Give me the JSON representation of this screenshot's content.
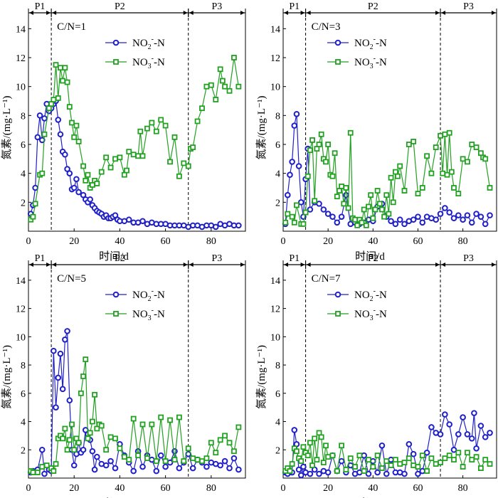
{
  "colors": {
    "no2": "#2020c8",
    "no3": "#22a022",
    "axis": "#000000"
  },
  "texts": {
    "time_label": "时间/d",
    "y_label": "氮素/(mg·L⁻¹)"
  },
  "chart_data": [
    {
      "type": "line",
      "annotation": "C/N=1",
      "phases": [
        "P1",
        "P2",
        "P3"
      ],
      "phase_bounds": [
        0,
        10,
        70,
        95
      ],
      "xlim": [
        0,
        95
      ],
      "ylim": [
        0,
        15
      ],
      "xticks": [
        0,
        20,
        40,
        60,
        80
      ],
      "yticks": [
        2,
        4,
        6,
        8,
        10,
        12,
        14
      ],
      "xlabel": "时间/d",
      "ylabel": "氮素/(mg·L⁻¹)",
      "series": [
        {
          "name": "NO2-",
          "marker": "circle",
          "x": [
            1,
            2,
            3,
            4,
            5,
            6,
            7,
            8,
            9,
            10,
            11,
            12,
            13,
            14,
            15,
            16,
            17,
            18,
            19,
            20,
            21,
            22,
            24,
            25,
            26,
            27,
            28,
            29,
            30,
            31,
            32,
            33,
            34,
            35,
            36,
            37,
            38,
            39,
            40,
            42,
            44,
            46,
            48,
            50,
            52,
            54,
            56,
            58,
            60,
            62,
            64,
            66,
            68,
            70,
            72,
            74,
            76,
            78,
            80,
            82,
            84,
            86,
            88,
            90,
            92
          ],
          "y": [
            1.2,
            1.8,
            3.0,
            6.5,
            8.0,
            6.3,
            7.8,
            8.8,
            8.3,
            8.5,
            8.8,
            9.0,
            7.7,
            6.7,
            5.5,
            5.3,
            4.3,
            4.0,
            2.9,
            3.0,
            3.6,
            2.7,
            2.5,
            2.2,
            2.0,
            2.2,
            1.8,
            1.6,
            1.4,
            1.3,
            1.2,
            1.0,
            1.1,
            0.9,
            0.9,
            1.0,
            1.1,
            0.8,
            0.7,
            0.7,
            0.8,
            0.6,
            0.6,
            0.7,
            0.5,
            0.6,
            0.5,
            0.5,
            0.5,
            0.4,
            0.4,
            0.4,
            0.4,
            0.3,
            0.4,
            0.4,
            0.3,
            0.4,
            0.4,
            0.3,
            0.5,
            0.4,
            0.5,
            0.4,
            0.4
          ]
        },
        {
          "name": "NO3-",
          "marker": "square",
          "x": [
            1,
            2,
            3,
            5,
            6,
            7,
            9,
            10,
            11,
            12,
            13,
            14,
            15,
            16,
            17,
            18,
            19,
            20,
            21,
            22,
            24,
            25,
            26,
            27,
            28,
            29,
            30,
            32,
            34,
            36,
            38,
            40,
            42,
            43,
            44,
            46,
            48,
            49,
            50,
            52,
            54,
            56,
            58,
            60,
            62,
            64,
            66,
            68,
            70,
            71,
            72,
            74,
            76,
            78,
            80,
            82,
            84,
            85,
            86,
            88,
            90,
            92
          ],
          "y": [
            0.8,
            1.0,
            1.9,
            3.9,
            4.0,
            6.7,
            8.5,
            8.8,
            9.1,
            11.5,
            9.2,
            11.3,
            10.4,
            11.3,
            10.3,
            8.6,
            7.5,
            6.5,
            7.3,
            6.2,
            4.5,
            3.5,
            3.9,
            3.0,
            3.2,
            3.5,
            3.3,
            4.1,
            5.1,
            4.4,
            5.0,
            5.1,
            3.9,
            4.2,
            5.5,
            5.3,
            5.2,
            6.9,
            5.2,
            7.1,
            7.5,
            6.9,
            7.7,
            7.3,
            4.8,
            6.5,
            3.8,
            4.7,
            4.5,
            5.7,
            5.8,
            7.6,
            8.5,
            10.0,
            10.1,
            9.1,
            11.2,
            10.4,
            10.0,
            9.7,
            12.0,
            10.0
          ]
        }
      ]
    },
    {
      "type": "line",
      "annotation": "C/N=3",
      "phases": [
        "P1",
        "P2",
        "P3"
      ],
      "phase_bounds": [
        0,
        10,
        70,
        95
      ],
      "xlim": [
        0,
        95
      ],
      "ylim": [
        0,
        15
      ],
      "xticks": [
        0,
        20,
        40,
        60,
        80
      ],
      "yticks": [
        2,
        4,
        6,
        8,
        10,
        12,
        14
      ],
      "xlabel": "时间/d",
      "ylabel": "氮素/(mg·L⁻¹)",
      "series": [
        {
          "name": "NO2-",
          "marker": "circle",
          "x": [
            1,
            2,
            3,
            4,
            5,
            6,
            7,
            8,
            9,
            10,
            11,
            12,
            14,
            16,
            18,
            20,
            22,
            24,
            26,
            28,
            30,
            32,
            34,
            36,
            38,
            40,
            42,
            44,
            46,
            48,
            50,
            52,
            54,
            56,
            58,
            60,
            62,
            64,
            66,
            68,
            70,
            72,
            74,
            76,
            78,
            80,
            82,
            84,
            86,
            88,
            90,
            92
          ],
          "y": [
            0.5,
            2.5,
            3.9,
            4.8,
            7.3,
            8.1,
            4.5,
            2.0,
            1.0,
            3.6,
            5.7,
            1.5,
            2.0,
            1.9,
            1.5,
            1.2,
            1.0,
            0.6,
            1.0,
            2.5,
            0.5,
            0.6,
            0.5,
            0.6,
            0.8,
            0.7,
            1.7,
            1.9,
            1.0,
            0.7,
            0.5,
            0.8,
            0.5,
            0.7,
            0.8,
            1.0,
            0.6,
            1.0,
            0.9,
            0.8,
            1.2,
            1.6,
            1.3,
            0.9,
            1.1,
            0.8,
            1.1,
            0.6,
            1.2,
            1.0,
            0.5,
            1.1
          ]
        },
        {
          "name": "NO3-",
          "marker": "square",
          "x": [
            1,
            2,
            4,
            5,
            6,
            8,
            9,
            10,
            11,
            12,
            13,
            14,
            15,
            16,
            17,
            18,
            19,
            20,
            21,
            22,
            23,
            24,
            25,
            26,
            27,
            28,
            29,
            30,
            31,
            32,
            33,
            34,
            35,
            36,
            37,
            38,
            39,
            40,
            41,
            42,
            43,
            44,
            45,
            46,
            47,
            48,
            49,
            50,
            51,
            52,
            54,
            56,
            58,
            60,
            62,
            64,
            66,
            68,
            70,
            71,
            72,
            73,
            74,
            75,
            76,
            78,
            80,
            82,
            84,
            86,
            88,
            89,
            90,
            92
          ],
          "y": [
            0.6,
            1.2,
            1.0,
            0.6,
            1.8,
            0.5,
            0.5,
            1.3,
            3.8,
            5.6,
            6.3,
            2.1,
            5.7,
            6.0,
            6.7,
            5.0,
            4.8,
            6.0,
            3.9,
            3.8,
            5.4,
            2.4,
            2.8,
            3.1,
            1.9,
            3.0,
            1.6,
            6.8,
            0.9,
            0.8,
            0.4,
            0.8,
            0.6,
            1.5,
            0.4,
            1.7,
            2.5,
            0.9,
            1.5,
            2.8,
            1.9,
            1.5,
            1.0,
            2.5,
            1.2,
            3.7,
            2.0,
            4.1,
            3.8,
            4.5,
            2.8,
            6.0,
            6.2,
            2.6,
            3.0,
            5.2,
            4.0,
            5.8,
            6.6,
            4.0,
            6.7,
            3.9,
            6.8,
            4.1,
            3.0,
            2.6,
            5.0,
            4.8,
            6.0,
            5.8,
            5.4,
            5.1,
            5.0,
            3.0
          ]
        }
      ]
    },
    {
      "type": "line",
      "annotation": "C/N=5",
      "phases": [
        "P1",
        "P2",
        "P3"
      ],
      "phase_bounds": [
        0,
        10,
        70,
        95
      ],
      "xlim": [
        0,
        95
      ],
      "ylim": [
        0,
        15
      ],
      "xticks": [
        0,
        20,
        40,
        60,
        80
      ],
      "yticks": [
        2,
        4,
        6,
        8,
        10,
        12,
        14
      ],
      "xlabel": "时间/d",
      "ylabel": "氮素/(mg·L⁻¹)",
      "series": [
        {
          "name": "NO2-",
          "marker": "circle",
          "x": [
            1,
            2,
            4,
            6,
            7,
            9,
            10,
            11,
            12,
            13,
            14,
            15,
            16,
            17,
            18,
            19,
            20,
            21,
            22,
            23,
            24,
            25,
            26,
            27,
            28,
            29,
            30,
            32,
            34,
            36,
            38,
            40,
            42,
            44,
            46,
            48,
            50,
            52,
            54,
            56,
            58,
            60,
            62,
            64,
            66,
            68,
            70,
            72,
            74,
            76,
            78,
            80,
            82,
            84,
            86,
            88,
            90,
            92
          ],
          "y": [
            0.4,
            0.5,
            0.6,
            2.0,
            0.3,
            0.6,
            0.5,
            9.0,
            5.0,
            7.1,
            8.8,
            6.3,
            9.8,
            10.4,
            5.5,
            2.0,
            0.9,
            1.7,
            2.5,
            1.8,
            2.0,
            3.4,
            3.1,
            2.7,
            1.9,
            0.6,
            1.5,
            1.0,
            0.9,
            1.2,
            0.7,
            2.4,
            1.6,
            1.1,
            0.5,
            1.9,
            0.8,
            1.6,
            1.3,
            0.5,
            1.6,
            0.8,
            1.1,
            1.9,
            0.7,
            1.1,
            1.7,
            0.7,
            1.3,
            1.1,
            0.8,
            1.1,
            1.0,
            0.9,
            1.2,
            0.7,
            1.4,
            0.6
          ]
        },
        {
          "name": "NO3-",
          "marker": "square",
          "x": [
            1,
            2,
            4,
            6,
            8,
            10,
            11,
            12,
            13,
            14,
            15,
            16,
            17,
            18,
            19,
            20,
            21,
            22,
            23,
            24,
            25,
            26,
            27,
            28,
            29,
            30,
            31,
            32,
            34,
            36,
            38,
            40,
            42,
            44,
            46,
            48,
            50,
            52,
            54,
            56,
            58,
            60,
            62,
            64,
            66,
            68,
            70,
            72,
            74,
            76,
            78,
            80,
            82,
            84,
            86,
            88,
            90,
            92
          ],
          "y": [
            0.5,
            0.4,
            0.4,
            0.8,
            0.9,
            0.7,
            0.5,
            1.0,
            2.8,
            3.0,
            2.8,
            3.5,
            2.0,
            2.7,
            3.8,
            2.0,
            2.8,
            2.5,
            6.0,
            7.2,
            8.4,
            2.8,
            3.2,
            4.0,
            5.9,
            3.5,
            3.8,
            3.7,
            2.0,
            2.9,
            2.8,
            2.1,
            1.5,
            1.3,
            4.2,
            1.6,
            3.8,
            1.4,
            3.8,
            1.2,
            4.3,
            1.2,
            4.1,
            1.3,
            4.3,
            1.2,
            2.1,
            1.4,
            1.3,
            1.2,
            1.4,
            2.5,
            1.8,
            2.7,
            3.0,
            2.5,
            1.9,
            3.6
          ]
        }
      ]
    },
    {
      "type": "line",
      "annotation": "C/N=7",
      "phases": [
        "P1",
        "P2",
        "P3"
      ],
      "phase_bounds": [
        0,
        10,
        70,
        95
      ],
      "xlim": [
        0,
        95
      ],
      "ylim": [
        0,
        15
      ],
      "xticks": [
        0,
        20,
        40,
        60,
        80
      ],
      "yticks": [
        2,
        4,
        6,
        8,
        10,
        12,
        14
      ],
      "xlabel": "时间/d",
      "ylabel": "氮素/(mg·L⁻¹)",
      "series": [
        {
          "name": "NO2-",
          "marker": "circle",
          "x": [
            1,
            2,
            3,
            4,
            5,
            6,
            7,
            8,
            9,
            10,
            12,
            14,
            16,
            18,
            20,
            22,
            24,
            26,
            28,
            30,
            32,
            34,
            36,
            38,
            40,
            42,
            44,
            46,
            48,
            50,
            52,
            54,
            56,
            58,
            60,
            62,
            64,
            66,
            68,
            70,
            72,
            74,
            76,
            78,
            80,
            82,
            84,
            85,
            86,
            88,
            90,
            92
          ],
          "y": [
            0.4,
            0.3,
            0.5,
            0.4,
            3.4,
            2.4,
            0.6,
            0.2,
            0.8,
            0.4,
            0.3,
            0.6,
            0.3,
            0.5,
            0.4,
            1.6,
            0.5,
            1.2,
            0.4,
            0.9,
            0.3,
            0.4,
            1.6,
            0.3,
            1.2,
            0.4,
            2.3,
            0.3,
            1.3,
            0.4,
            0.4,
            0.3,
            2.4,
            1.7,
            0.3,
            0.5,
            1.8,
            3.6,
            3.2,
            3.1,
            4.5,
            3.8,
            2.0,
            3.1,
            4.3,
            3.1,
            2.8,
            4.6,
            2.1,
            3.7,
            2.9,
            3.2
          ]
        },
        {
          "name": "NO3-",
          "marker": "square",
          "x": [
            1,
            2,
            3,
            4,
            5,
            6,
            7,
            8,
            9,
            10,
            11,
            12,
            13,
            14,
            15,
            16,
            17,
            18,
            19,
            20,
            22,
            24,
            26,
            28,
            30,
            32,
            34,
            36,
            38,
            40,
            42,
            44,
            46,
            48,
            50,
            52,
            54,
            56,
            58,
            60,
            62,
            64,
            66,
            68,
            70,
            72,
            74,
            76,
            78,
            80,
            82,
            84,
            86,
            88,
            90,
            92
          ],
          "y": [
            0.5,
            0.7,
            0.5,
            1.0,
            2.1,
            1.9,
            1.4,
            1.2,
            2.2,
            1.8,
            1.6,
            2.5,
            0.9,
            2.8,
            1.3,
            3.2,
            2.9,
            1.1,
            2.3,
            1.5,
            1.6,
            0.5,
            2.3,
            0.6,
            1.4,
            0.8,
            1.6,
            0.5,
            1.3,
            0.8,
            1.6,
            0.7,
            1.2,
            0.9,
            1.3,
            1.0,
            1.1,
            1.4,
            0.9,
            0.8,
            1.6,
            0.5,
            1.4,
            1.0,
            1.1,
            1.4,
            1.6,
            1.3,
            1.8,
            0.8,
            1.8,
            1.3,
            1.5,
            0.7,
            1.3,
            1.0
          ]
        }
      ]
    }
  ]
}
